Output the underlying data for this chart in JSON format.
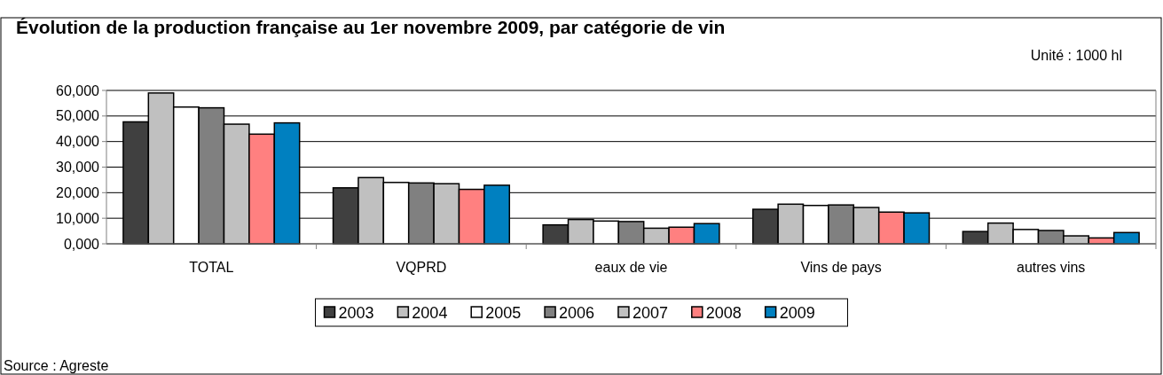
{
  "chart_data": {
    "type": "bar",
    "title": "Évolution de la production française au 1er novembre 2009, par catégorie de vin",
    "annotations": [
      "Unité : 1000 hl",
      "Source : Agreste"
    ],
    "categories": [
      "TOTAL",
      "VQPRD",
      "eaux de vie",
      "Vins de pays",
      "autres vins"
    ],
    "series": [
      {
        "name": "2003",
        "color": "#404040",
        "values": [
          47700,
          21900,
          7400,
          13500,
          4800
        ]
      },
      {
        "name": "2004",
        "color": "#c0c0c0",
        "values": [
          59000,
          25900,
          9500,
          15500,
          8100
        ]
      },
      {
        "name": "2005",
        "color": "#ffffff",
        "values": [
          53500,
          24000,
          8900,
          15000,
          5600
        ]
      },
      {
        "name": "2006",
        "color": "#808080",
        "values": [
          53200,
          23800,
          8700,
          15200,
          5200
        ]
      },
      {
        "name": "2007",
        "color": "#c0c0c0",
        "values": [
          46800,
          23500,
          6100,
          14200,
          3100
        ]
      },
      {
        "name": "2008",
        "color": "#ff8080",
        "values": [
          42900,
          21300,
          6500,
          12400,
          2300
        ]
      },
      {
        "name": "2009",
        "color": "#0080c0",
        "values": [
          47300,
          22900,
          7900,
          12100,
          4400
        ]
      }
    ],
    "ylim": [
      0,
      60000
    ],
    "yticks": [
      {
        "value": 0,
        "label": "0,000"
      },
      {
        "value": 10000,
        "label": "10,000"
      },
      {
        "value": 20000,
        "label": "20,000"
      },
      {
        "value": 30000,
        "label": "30,000"
      },
      {
        "value": 40000,
        "label": "40,000"
      },
      {
        "value": 50000,
        "label": "50,000"
      },
      {
        "value": 60000,
        "label": "60,000"
      }
    ],
    "grid": "y",
    "legend": "bottom"
  }
}
